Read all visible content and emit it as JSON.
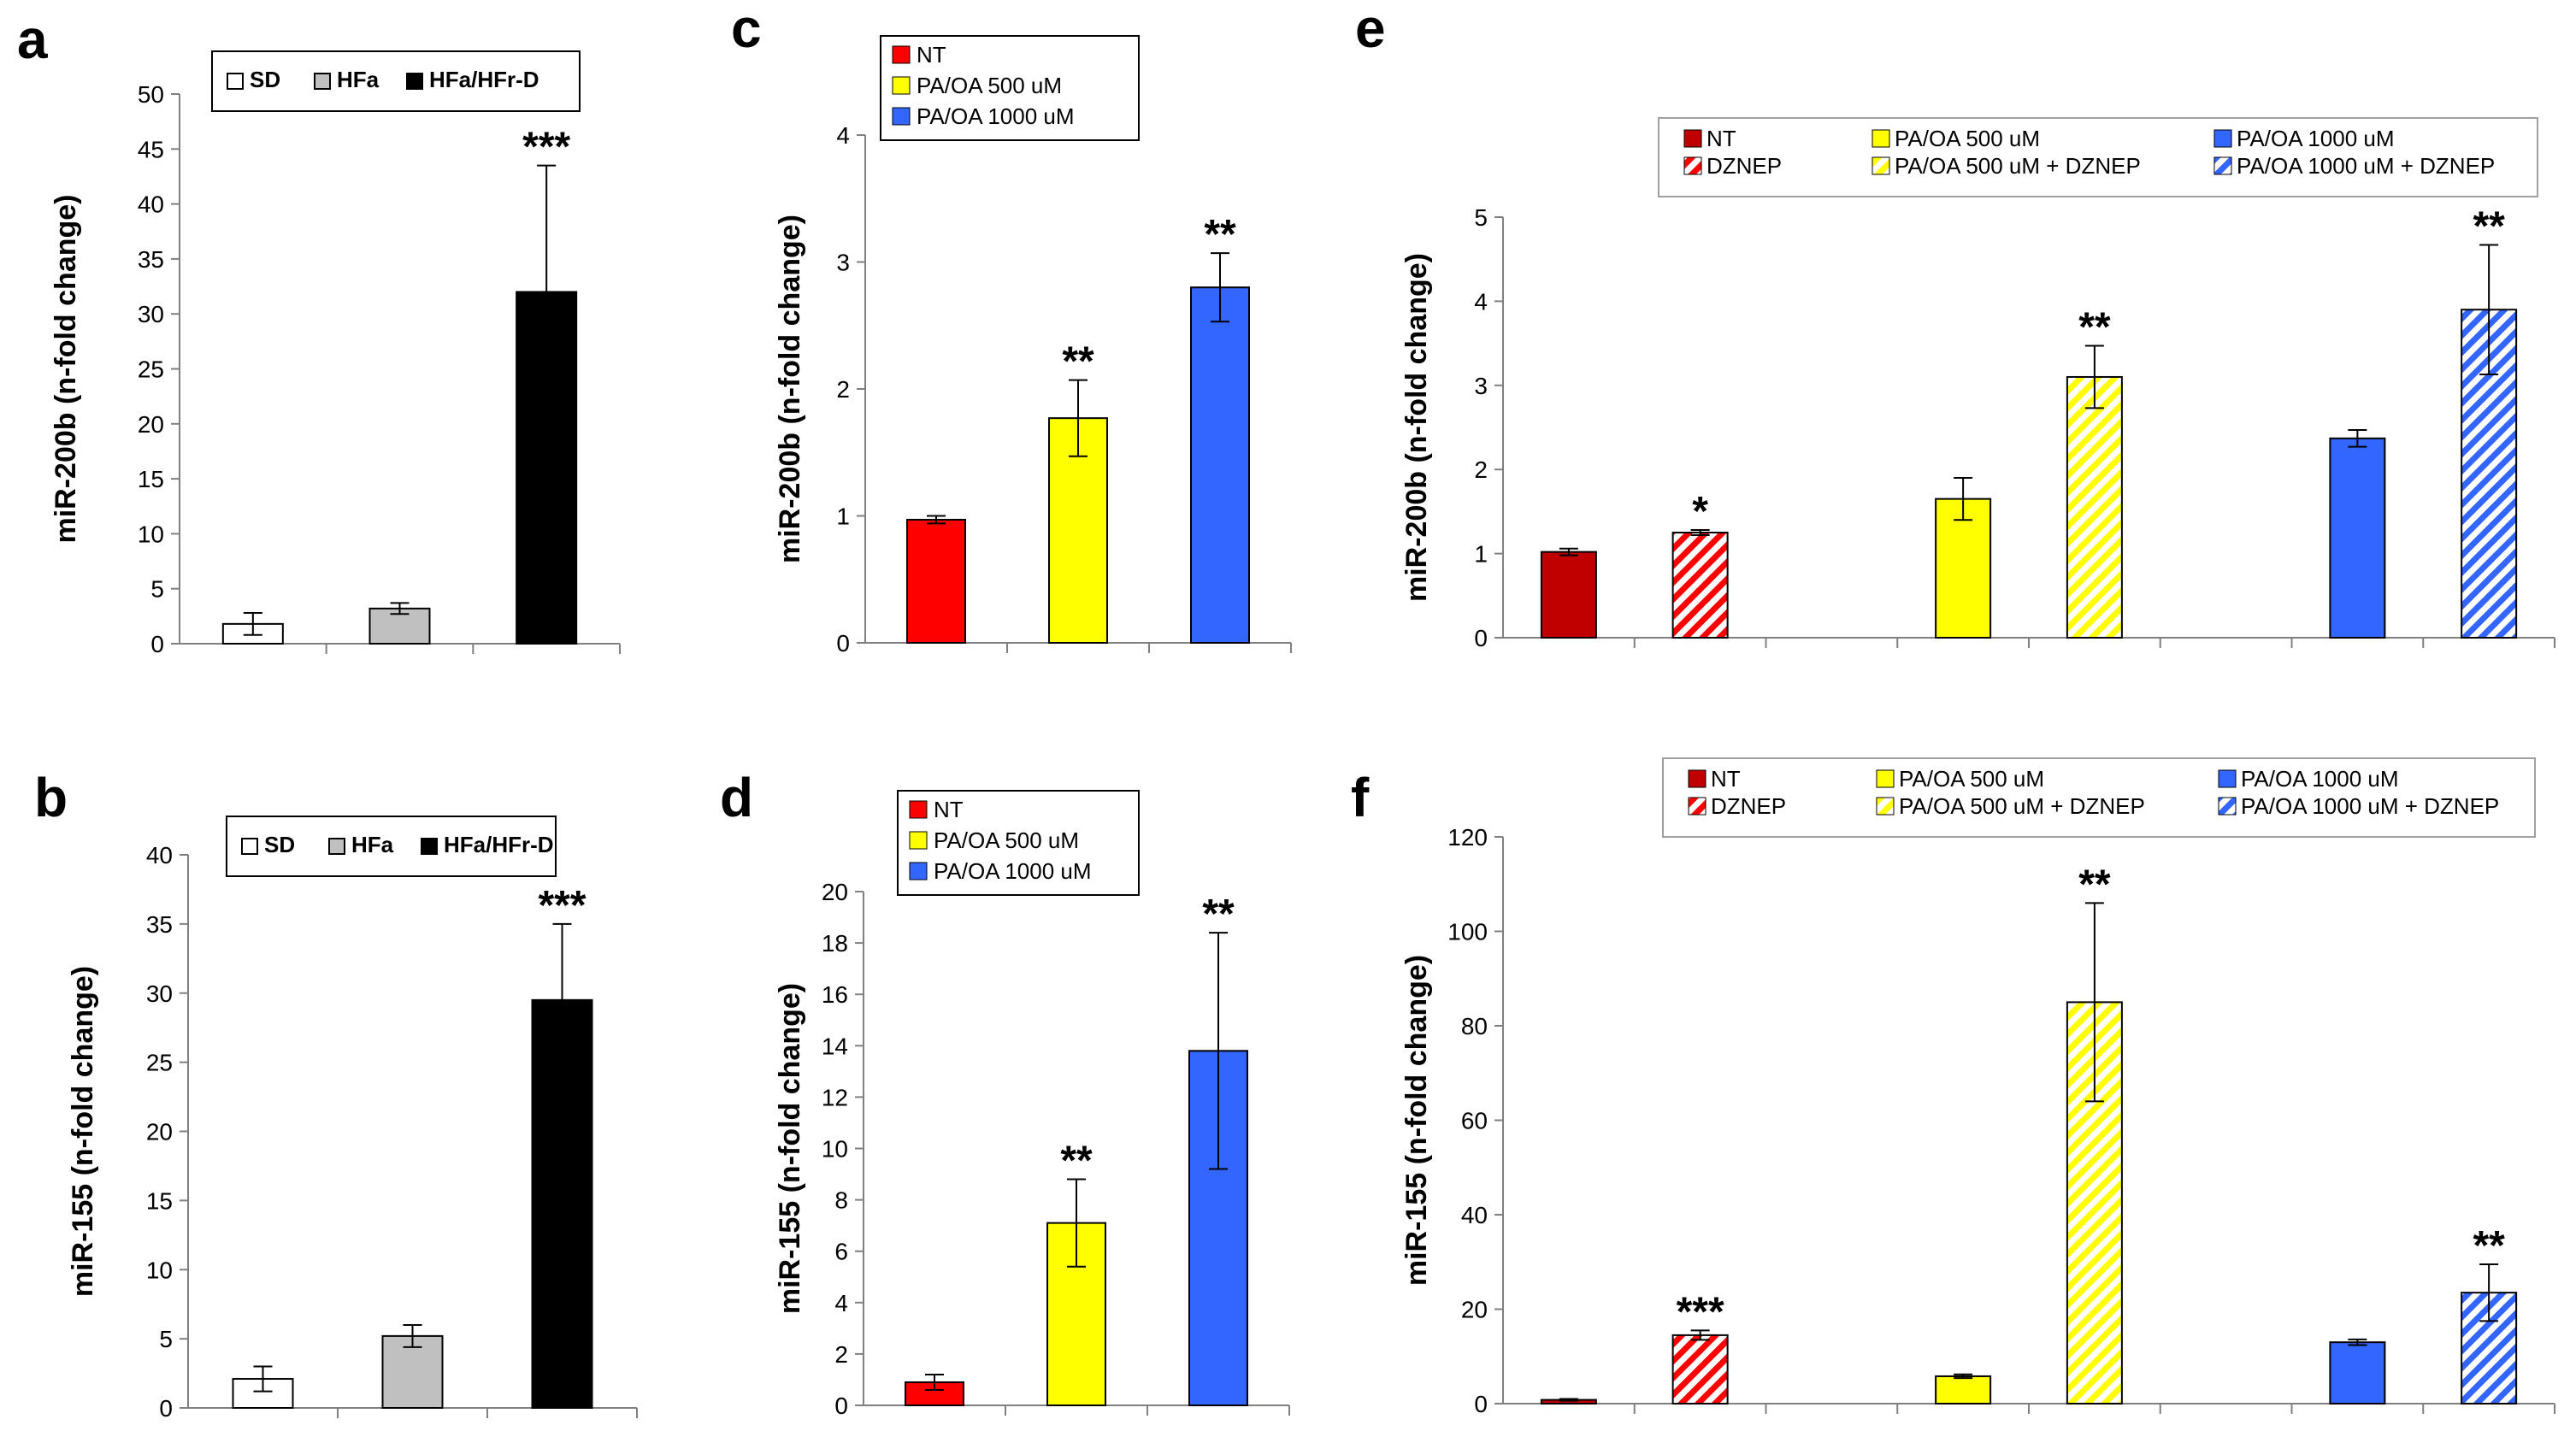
{
  "colors": {
    "sd": "#ffffff",
    "hfa": "#c0c0c0",
    "hfa_hfrd": "#000000",
    "nt": "#ff0000",
    "nt_dark": "#c00000",
    "pa500": "#ffff00",
    "pa1000": "#3366ff"
  },
  "chart_data": [
    {
      "panel": "a",
      "type": "bar",
      "ylabel": "miR-200b (n-fold change)",
      "ylim": [
        0,
        50
      ],
      "yticks": [
        "0",
        "5",
        "10",
        "15",
        "20",
        "25",
        "30",
        "35",
        "40",
        "45",
        "50"
      ],
      "legend": [
        "SD",
        "HFa",
        "HFa/HFr-D"
      ],
      "bars": [
        {
          "name": "SD",
          "value": 1.8,
          "error": 1.0,
          "color": "#ffffff",
          "stars": ""
        },
        {
          "name": "HFa",
          "value": 3.2,
          "error": 0.5,
          "color": "#c0c0c0",
          "stars": ""
        },
        {
          "name": "HFa/HFr-D",
          "value": 32.0,
          "error": 11.5,
          "color": "#000000",
          "stars": "***"
        }
      ]
    },
    {
      "panel": "b",
      "type": "bar",
      "ylabel": "miR-155 (n-fold change)",
      "ylim": [
        0,
        40
      ],
      "yticks": [
        "0",
        "5",
        "10",
        "15",
        "20",
        "25",
        "30",
        "35",
        "40"
      ],
      "legend": [
        "SD",
        "HFa",
        "HFa/HFr-D"
      ],
      "bars": [
        {
          "name": "SD",
          "value": 2.1,
          "error": 0.9,
          "color": "#ffffff",
          "stars": ""
        },
        {
          "name": "HFa",
          "value": 5.2,
          "error": 0.8,
          "color": "#c0c0c0",
          "stars": ""
        },
        {
          "name": "HFa/HFr-D",
          "value": 29.5,
          "error": 5.5,
          "color": "#000000",
          "stars": "***"
        }
      ]
    },
    {
      "panel": "c",
      "type": "bar",
      "ylabel": "miR-200b (n-fold change)",
      "ylim": [
        0,
        4
      ],
      "yticks": [
        "0",
        "1",
        "2",
        "3",
        "4"
      ],
      "legend": [
        "NT",
        "PA/OA 500 uM",
        "PA/OA 1000 uM"
      ],
      "bars": [
        {
          "name": "NT",
          "value": 0.97,
          "error": 0.03,
          "color": "#ff0000",
          "stars": ""
        },
        {
          "name": "PA/OA 500 uM",
          "value": 1.77,
          "error": 0.3,
          "color": "#ffff00",
          "stars": "**"
        },
        {
          "name": "PA/OA 1000 uM",
          "value": 2.8,
          "error": 0.27,
          "color": "#3366ff",
          "stars": "**"
        }
      ]
    },
    {
      "panel": "d",
      "type": "bar",
      "ylabel": "miR-155 (n-fold change)",
      "ylim": [
        0,
        20
      ],
      "yticks": [
        "0",
        "2",
        "4",
        "6",
        "8",
        "10",
        "12",
        "14",
        "16",
        "18",
        "20"
      ],
      "legend": [
        "NT",
        "PA/OA 500 uM",
        "PA/OA 1000 uM"
      ],
      "bars": [
        {
          "name": "NT",
          "value": 0.9,
          "error": 0.3,
          "color": "#ff0000",
          "stars": ""
        },
        {
          "name": "PA/OA 500 uM",
          "value": 7.1,
          "error": 1.7,
          "color": "#ffff00",
          "stars": "**"
        },
        {
          "name": "PA/OA 1000 uM",
          "value": 13.8,
          "error": 4.6,
          "color": "#3366ff",
          "stars": "**"
        }
      ]
    },
    {
      "panel": "e",
      "type": "bar",
      "ylabel": "miR-200b (n-fold change)",
      "ylim": [
        0,
        5
      ],
      "yticks": [
        "0",
        "1",
        "2",
        "3",
        "4",
        "5"
      ],
      "legend": [
        "NT",
        "DZNEP",
        "PA/OA 500 uM",
        "PA/OA 500 uM + DZNEP",
        "PA/OA 1000 uM",
        "PA/OA 1000 uM + DZNEP"
      ],
      "bars": [
        {
          "name": "NT",
          "value": 1.02,
          "error": 0.04,
          "color": "#c00000",
          "hatched": false,
          "stars": ""
        },
        {
          "name": "DZNEP",
          "value": 1.25,
          "error": 0.03,
          "color": "#ff0000",
          "hatched": true,
          "stars": "*"
        },
        {
          "name": "gap1",
          "value": null
        },
        {
          "name": "PA/OA 500 uM",
          "value": 1.65,
          "error": 0.25,
          "color": "#ffff00",
          "hatched": false,
          "stars": ""
        },
        {
          "name": "PA/OA 500 uM + DZNEP",
          "value": 3.1,
          "error": 0.37,
          "color": "#ffff00",
          "hatched": true,
          "stars": "**"
        },
        {
          "name": "gap2",
          "value": null
        },
        {
          "name": "PA/OA 1000 uM",
          "value": 2.37,
          "error": 0.1,
          "color": "#3366ff",
          "hatched": false,
          "stars": ""
        },
        {
          "name": "PA/OA 1000 uM + DZNEP",
          "value": 3.9,
          "error": 0.77,
          "color": "#3366ff",
          "hatched": true,
          "stars": "**"
        }
      ]
    },
    {
      "panel": "f",
      "type": "bar",
      "ylabel": "miR-155 (n-fold change)",
      "ylim": [
        0,
        120
      ],
      "yticks": [
        "0",
        "20",
        "40",
        "60",
        "80",
        "100",
        "120"
      ],
      "legend": [
        "NT",
        "DZNEP",
        "PA/OA 500 uM",
        "PA/OA 500 uM + DZNEP",
        "PA/OA 1000 uM",
        "PA/OA 1000 uM + DZNEP"
      ],
      "bars": [
        {
          "name": "NT",
          "value": 0.8,
          "error": 0.2,
          "color": "#c00000",
          "hatched": false,
          "stars": ""
        },
        {
          "name": "DZNEP",
          "value": 14.5,
          "error": 1.0,
          "color": "#ff0000",
          "hatched": true,
          "stars": "***"
        },
        {
          "name": "gap1",
          "value": null
        },
        {
          "name": "PA/OA 500 uM",
          "value": 5.8,
          "error": 0.4,
          "color": "#ffff00",
          "hatched": false,
          "stars": ""
        },
        {
          "name": "PA/OA 500 uM + DZNEP",
          "value": 85.0,
          "error": 21.0,
          "color": "#ffff00",
          "hatched": true,
          "stars": "**"
        },
        {
          "name": "gap2",
          "value": null
        },
        {
          "name": "PA/OA 1000 uM",
          "value": 13.0,
          "error": 0.6,
          "color": "#3366ff",
          "hatched": false,
          "stars": ""
        },
        {
          "name": "PA/OA 1000 uM + DZNEP",
          "value": 23.5,
          "error": 6.0,
          "color": "#3366ff",
          "hatched": true,
          "stars": "**"
        }
      ]
    }
  ]
}
